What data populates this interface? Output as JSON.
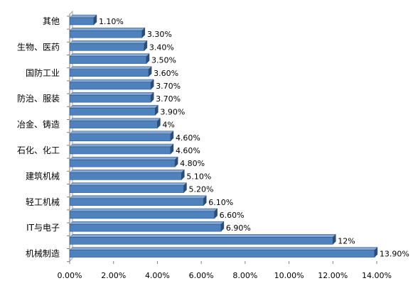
{
  "chart_data": {
    "type": "bar",
    "orientation": "horizontal",
    "categories": [
      "机械制造",
      "",
      "IT与电子",
      "",
      "轻工机械",
      "",
      "建筑机械",
      "",
      "石化、化工",
      "",
      "冶金、铸造",
      "",
      "防治、服装",
      "",
      "国防工业",
      "",
      "生物、医药",
      "",
      "其他"
    ],
    "values": [
      13.9,
      12,
      6.9,
      6.6,
      6.1,
      5.2,
      5.1,
      4.8,
      4.6,
      4.6,
      4,
      3.9,
      3.7,
      3.7,
      3.6,
      3.5,
      3.4,
      3.3,
      1.1
    ],
    "value_labels": [
      "13.90%",
      "12%",
      "6.90%",
      "6.60%",
      "6.10%",
      "5.20%",
      "5.10%",
      "4.80%",
      "4.60%",
      "4.60%",
      "4%",
      "3.90%",
      "3.70%",
      "3.70%",
      "3.60%",
      "3.50%",
      "3.40%",
      "3.30%",
      "1.10%"
    ],
    "x_ticks": [
      "0.00%",
      "2.00%",
      "4.00%",
      "6.00%",
      "8.00%",
      "10.00%",
      "12.00%",
      "14.00%"
    ],
    "xlim": [
      0,
      14
    ],
    "grid": false,
    "legend": "none",
    "bar_color": "#4f81bd",
    "bar_dark": "#2c4d75"
  }
}
